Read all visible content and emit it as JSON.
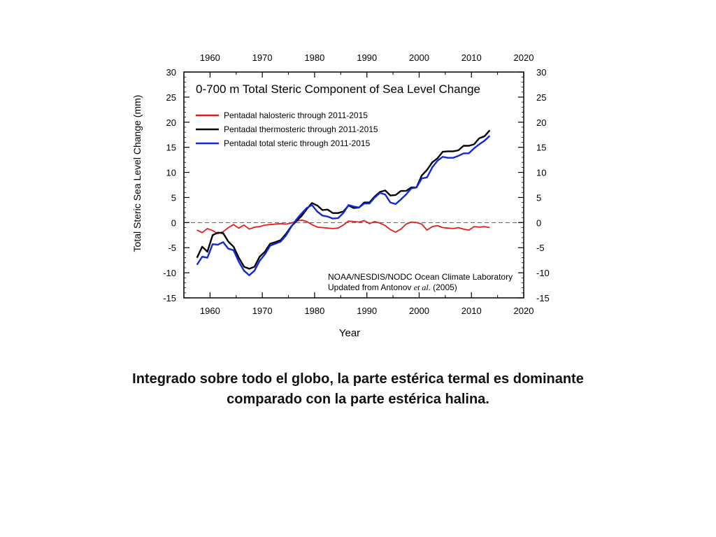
{
  "chart_data": {
    "type": "line",
    "title": "0-700 m Total Steric Component of Sea Level Change",
    "xlabel": "Year",
    "ylabel": "Total Steric Sea Level Change (mm)",
    "xlim": [
      1955,
      2020
    ],
    "ylim": [
      -15,
      30
    ],
    "xticks": [
      1960,
      1970,
      1980,
      1990,
      2000,
      2010,
      2020
    ],
    "yticks": [
      -15,
      -10,
      -5,
      0,
      5,
      10,
      15,
      20,
      25,
      30
    ],
    "grid": false,
    "legend_position": "top-left",
    "note_line1": "NOAA/NESDIS/NODC Ocean Climate Laboratory",
    "note_line2_prefix": "Updated from Antonov",
    "note_line2_italic": "et al.",
    "note_line2_suffix": "(2005)",
    "series": [
      {
        "name": "Pentadal halosteric through 2011-2015",
        "color": "#e02020",
        "x": [
          1957.5,
          1958.5,
          1959.5,
          1960.5,
          1961.5,
          1962.5,
          1963.5,
          1964.5,
          1965.5,
          1966.5,
          1967.5,
          1968.5,
          1969.5,
          1970.5,
          1971.5,
          1972.5,
          1973.5,
          1974.5,
          1975.5,
          1976.5,
          1977.5,
          1978.5,
          1979.5,
          1980.5,
          1981.5,
          1982.5,
          1983.5,
          1984.5,
          1985.5,
          1986.5,
          1987.5,
          1988.5,
          1989.5,
          1990.5,
          1991.5,
          1992.5,
          1993.5,
          1994.5,
          1995.5,
          1996.5,
          1997.5,
          1998.5,
          1999.5,
          2000.5,
          2001.5,
          2002.5,
          2003.5,
          2004.5,
          2005.5,
          2006.5,
          2007.5,
          2008.5,
          2009.5,
          2010.5,
          2011.5,
          2012.5,
          2013.5
        ],
        "y": [
          -1.5,
          -2.0,
          -1.2,
          -1.6,
          -2.2,
          -1.8,
          -1.0,
          -0.4,
          -1.1,
          -0.5,
          -1.3,
          -0.9,
          -0.8,
          -0.5,
          -0.4,
          -0.3,
          -0.2,
          -0.3,
          -0.1,
          0.3,
          0.5,
          0.2,
          -0.4,
          -0.9,
          -1.0,
          -1.1,
          -1.2,
          -1.1,
          -0.5,
          0.3,
          0.2,
          0.1,
          0.4,
          -0.2,
          0.2,
          -0.1,
          -0.6,
          -1.4,
          -1.9,
          -1.3,
          -0.3,
          0.1,
          0.0,
          -0.3,
          -1.5,
          -0.8,
          -0.6,
          -1.0,
          -1.1,
          -1.2,
          -1.0,
          -1.3,
          -1.5,
          -0.8,
          -0.9,
          -0.8,
          -1.0
        ]
      },
      {
        "name": "Pentadal thermosteric through 2011-2015",
        "color": "#000000",
        "x": [
          1957.5,
          1958.5,
          1959.5,
          1960.5,
          1961.5,
          1962.5,
          1963.5,
          1964.5,
          1965.5,
          1966.5,
          1967.5,
          1968.5,
          1969.5,
          1970.5,
          1971.5,
          1972.5,
          1973.5,
          1974.5,
          1975.5,
          1976.5,
          1977.5,
          1978.5,
          1979.5,
          1980.5,
          1981.5,
          1982.5,
          1983.5,
          1984.5,
          1985.5,
          1986.5,
          1987.5,
          1988.5,
          1989.5,
          1990.5,
          1991.5,
          1992.5,
          1993.5,
          1994.5,
          1995.5,
          1996.5,
          1997.5,
          1998.5,
          1999.5,
          2000.5,
          2001.5,
          2002.5,
          2003.5,
          2004.5,
          2005.5,
          2006.5,
          2007.5,
          2008.5,
          2009.5,
          2010.5,
          2011.5,
          2012.5,
          2013.5
        ],
        "y": [
          -7.0,
          -4.8,
          -5.8,
          -2.5,
          -2.0,
          -2.1,
          -3.8,
          -4.8,
          -7.0,
          -8.8,
          -9.2,
          -8.8,
          -6.8,
          -5.8,
          -4.2,
          -3.9,
          -3.5,
          -2.3,
          -0.8,
          0.3,
          1.3,
          2.7,
          3.9,
          3.4,
          2.5,
          2.6,
          1.9,
          1.9,
          2.2,
          3.4,
          2.9,
          3.0,
          4.0,
          4.0,
          5.2,
          6.1,
          6.4,
          5.4,
          5.5,
          6.3,
          6.3,
          7.0,
          7.0,
          9.4,
          10.5,
          12.0,
          12.8,
          14.1,
          14.2,
          14.2,
          14.4,
          15.3,
          15.3,
          15.6,
          16.8,
          17.2,
          18.4
        ]
      },
      {
        "name": "Pentadal total steric through 2011-2015",
        "color": "#1428d8",
        "x": [
          1957.5,
          1958.5,
          1959.5,
          1960.5,
          1961.5,
          1962.5,
          1963.5,
          1964.5,
          1965.5,
          1966.5,
          1967.5,
          1968.5,
          1969.5,
          1970.5,
          1971.5,
          1972.5,
          1973.5,
          1974.5,
          1975.5,
          1976.5,
          1977.5,
          1978.5,
          1979.5,
          1980.5,
          1981.5,
          1982.5,
          1983.5,
          1984.5,
          1985.5,
          1986.5,
          1987.5,
          1988.5,
          1989.5,
          1990.5,
          1991.5,
          1992.5,
          1993.5,
          1994.5,
          1995.5,
          1996.5,
          1997.5,
          1998.5,
          1999.5,
          2000.5,
          2001.5,
          2002.5,
          2003.5,
          2004.5,
          2005.5,
          2006.5,
          2007.5,
          2008.5,
          2009.5,
          2010.5,
          2011.5,
          2012.5,
          2013.5
        ],
        "y": [
          -8.4,
          -6.8,
          -7.0,
          -4.3,
          -4.4,
          -3.9,
          -5.2,
          -5.5,
          -7.8,
          -9.6,
          -10.5,
          -9.6,
          -7.6,
          -6.3,
          -4.6,
          -4.2,
          -3.8,
          -2.6,
          -0.9,
          0.6,
          1.8,
          2.9,
          3.5,
          2.2,
          1.4,
          1.2,
          0.8,
          0.9,
          1.9,
          3.5,
          3.2,
          3.0,
          3.8,
          3.8,
          5.0,
          5.9,
          5.6,
          4.0,
          3.7,
          4.6,
          5.6,
          6.8,
          7.0,
          8.8,
          9.0,
          11.0,
          12.3,
          13.1,
          12.9,
          12.9,
          13.3,
          13.8,
          13.8,
          14.8,
          15.6,
          16.3,
          17.3
        ]
      }
    ]
  },
  "caption": {
    "line1": "Integrado sobre todo el globo, la parte estérica termal es dominante",
    "line2": "comparado con la parte estérica halina."
  }
}
